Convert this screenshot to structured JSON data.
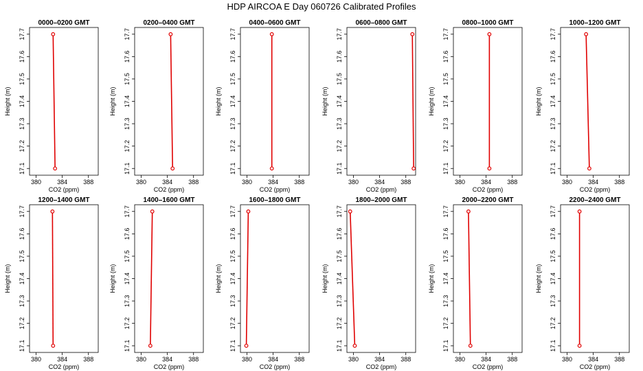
{
  "chart_data": {
    "type": "line",
    "title": "HDP  AIRCOA E  Day 060726  Calibrated Profiles",
    "layout": "2 rows x 6 columns",
    "xlabel": "CO2 (ppm)",
    "ylabel": "Height (m)",
    "xlim": [
      379,
      389.5
    ],
    "ylim": [
      17.07,
      17.73
    ],
    "x_ticks": [
      380,
      384,
      388
    ],
    "y_ticks": [
      17.1,
      17.2,
      17.3,
      17.4,
      17.5,
      17.6,
      17.7
    ],
    "line_color": "#e00000",
    "marker": "open-circle",
    "grid": false,
    "panels": [
      {
        "title": "0000–0200 GMT",
        "points": [
          {
            "x": 382.9,
            "y": 17.1
          },
          {
            "x": 382.6,
            "y": 17.7
          }
        ]
      },
      {
        "title": "0200–0400 GMT",
        "points": [
          {
            "x": 384.8,
            "y": 17.1
          },
          {
            "x": 384.5,
            "y": 17.7
          }
        ]
      },
      {
        "title": "0400–0600 GMT",
        "points": [
          {
            "x": 383.8,
            "y": 17.1
          },
          {
            "x": 383.8,
            "y": 17.7
          }
        ]
      },
      {
        "title": "0600–0800 GMT",
        "points": [
          {
            "x": 389.2,
            "y": 17.1
          },
          {
            "x": 389.0,
            "y": 17.7
          }
        ]
      },
      {
        "title": "0800–1000 GMT",
        "points": [
          {
            "x": 384.5,
            "y": 17.1
          },
          {
            "x": 384.5,
            "y": 17.7
          }
        ]
      },
      {
        "title": "1000–1200 GMT",
        "points": [
          {
            "x": 383.4,
            "y": 17.1
          },
          {
            "x": 382.9,
            "y": 17.7
          }
        ]
      },
      {
        "title": "1200–1400 GMT",
        "points": [
          {
            "x": 382.6,
            "y": 17.1
          },
          {
            "x": 382.5,
            "y": 17.7
          }
        ]
      },
      {
        "title": "1400–1600 GMT",
        "points": [
          {
            "x": 381.4,
            "y": 17.1
          },
          {
            "x": 381.7,
            "y": 17.7
          }
        ]
      },
      {
        "title": "1600–1800 GMT",
        "points": [
          {
            "x": 379.9,
            "y": 17.1
          },
          {
            "x": 380.2,
            "y": 17.7
          }
        ]
      },
      {
        "title": "1800–2000 GMT",
        "points": [
          {
            "x": 380.2,
            "y": 17.1
          },
          {
            "x": 379.5,
            "y": 17.7
          }
        ]
      },
      {
        "title": "2000–2200 GMT",
        "points": [
          {
            "x": 381.6,
            "y": 17.1
          },
          {
            "x": 381.3,
            "y": 17.7
          }
        ]
      },
      {
        "title": "2200–2400 GMT",
        "points": [
          {
            "x": 381.9,
            "y": 17.1
          },
          {
            "x": 381.9,
            "y": 17.7
          }
        ]
      }
    ]
  }
}
